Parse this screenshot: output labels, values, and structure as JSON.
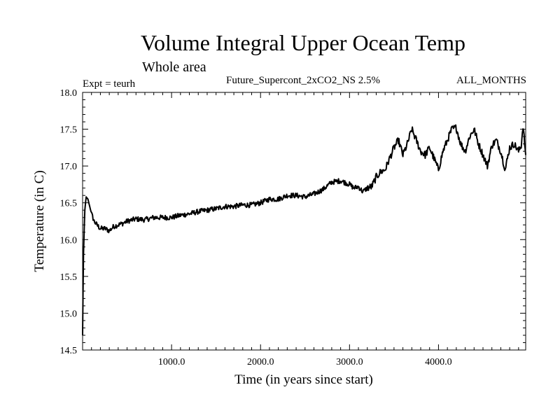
{
  "chart_data": {
    "type": "line",
    "title": "Volume Integral Upper Ocean Temp",
    "subtitle": "Whole area",
    "expt_label": "Expt = teurh",
    "run_label": "Future_Supercont_2xCO2_NS 2.5%",
    "months_label": "ALL_MONTHS",
    "xlabel": "Time (in years since start)",
    "ylabel": "Temperature (in C)",
    "xlim": [
      0,
      4980
    ],
    "ylim": [
      14.5,
      18.0
    ],
    "grid": false,
    "x_ticks": [
      1000,
      2000,
      3000,
      4000
    ],
    "x_tick_labels": [
      "1000.0",
      "2000.0",
      "3000.0",
      "4000.0"
    ],
    "y_ticks": [
      14.5,
      15.0,
      15.5,
      16.0,
      16.5,
      17.0,
      17.5,
      18.0
    ],
    "y_tick_labels": [
      "14.5",
      "15.0",
      "15.5",
      "16.0",
      "16.5",
      "17.0",
      "17.5",
      "18.0"
    ],
    "series": [
      {
        "color": "#000000",
        "x": [
          0,
          10,
          25,
          40,
          60,
          80,
          100,
          130,
          160,
          200,
          250,
          300,
          350,
          400,
          450,
          500,
          600,
          700,
          800,
          900,
          1000,
          1100,
          1200,
          1300,
          1400,
          1500,
          1600,
          1700,
          1800,
          1900,
          2000,
          2100,
          2200,
          2300,
          2400,
          2500,
          2600,
          2700,
          2800,
          2900,
          3000,
          3050,
          3100,
          3150,
          3200,
          3250,
          3300,
          3350,
          3400,
          3450,
          3500,
          3550,
          3600,
          3650,
          3700,
          3750,
          3800,
          3850,
          3900,
          3950,
          4000,
          4050,
          4100,
          4150,
          4200,
          4250,
          4300,
          4350,
          4400,
          4450,
          4500,
          4550,
          4600,
          4650,
          4700,
          4750,
          4800,
          4850,
          4900,
          4930,
          4950,
          4980
        ],
        "y": [
          14.7,
          15.8,
          16.4,
          16.58,
          16.55,
          16.45,
          16.35,
          16.25,
          16.2,
          16.15,
          16.15,
          16.12,
          16.18,
          16.2,
          16.22,
          16.25,
          16.28,
          16.27,
          16.3,
          16.3,
          16.3,
          16.33,
          16.35,
          16.38,
          16.4,
          16.42,
          16.45,
          16.45,
          16.47,
          16.47,
          16.5,
          16.55,
          16.55,
          16.6,
          16.6,
          16.58,
          16.62,
          16.68,
          16.78,
          16.8,
          16.75,
          16.7,
          16.72,
          16.65,
          16.7,
          16.72,
          16.85,
          16.92,
          16.95,
          17.1,
          17.25,
          17.35,
          17.15,
          17.3,
          17.5,
          17.35,
          17.2,
          17.15,
          17.25,
          17.1,
          16.95,
          17.2,
          17.35,
          17.5,
          17.52,
          17.3,
          17.2,
          17.4,
          17.5,
          17.3,
          17.15,
          17.0,
          17.28,
          17.35,
          17.2,
          16.95,
          17.25,
          17.3,
          17.2,
          17.28,
          17.55,
          17.15
        ]
      }
    ]
  }
}
